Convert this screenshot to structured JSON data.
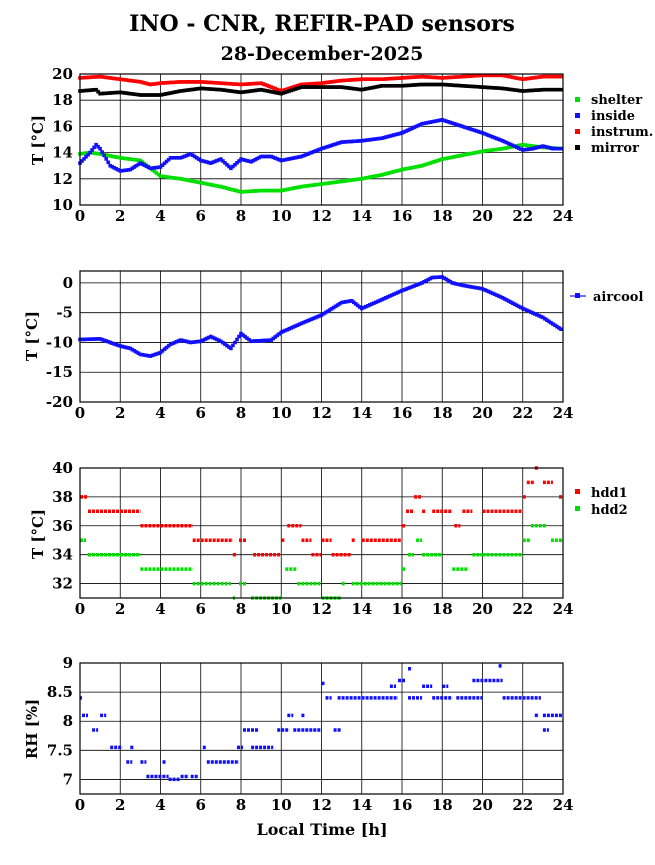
{
  "title": "INO - CNR, REFIR-PAD sensors",
  "date": "28-December-2025",
  "x_axis_label": "Local Time [h]",
  "colors": {
    "shelter": "#00e000",
    "inside": "#1010ff",
    "instrum": "#ff0000",
    "mirror": "#000000",
    "aircool": "#1010ff",
    "hdd1": "#ff0000",
    "hdd2": "#00e000",
    "rh": "#1010ff"
  },
  "chart_data": [
    {
      "type": "line",
      "id": "temps",
      "ylabel": "T [°C]",
      "xlim": [
        0,
        24
      ],
      "ylim": [
        10,
        20
      ],
      "xticks": [
        0,
        2,
        4,
        6,
        8,
        10,
        12,
        14,
        16,
        18,
        20,
        22,
        24
      ],
      "yticks": [
        10,
        12,
        14,
        16,
        18,
        20
      ],
      "grid": true,
      "legend_position": "right",
      "series": [
        {
          "name": "shelter",
          "x": [
            0,
            0.5,
            1,
            2,
            3,
            3.5,
            4,
            5,
            6,
            7,
            8,
            9,
            10,
            11,
            12,
            13,
            14,
            15,
            16,
            17,
            18,
            19,
            20,
            21,
            22,
            23,
            24
          ],
          "y": [
            13.9,
            14.0,
            13.9,
            13.6,
            13.4,
            12.8,
            12.2,
            12.0,
            11.7,
            11.4,
            11.0,
            11.1,
            11.1,
            11.4,
            11.6,
            11.8,
            12.0,
            12.3,
            12.7,
            13.0,
            13.5,
            13.8,
            14.1,
            14.3,
            14.6,
            14.4,
            14.3
          ]
        },
        {
          "name": "inside",
          "x": [
            0,
            0.5,
            0.8,
            1,
            1.5,
            2,
            2.5,
            3,
            3.5,
            4,
            4.5,
            5,
            5.5,
            6,
            6.5,
            7,
            7.5,
            8,
            8.5,
            9,
            9.5,
            10,
            11,
            12,
            13,
            14,
            15,
            16,
            17,
            18,
            19,
            20,
            21,
            22,
            22.5,
            23,
            23.5,
            24
          ],
          "y": [
            13.2,
            14.0,
            14.6,
            14.3,
            13.0,
            12.6,
            12.7,
            13.2,
            12.8,
            12.9,
            13.6,
            13.6,
            13.9,
            13.4,
            13.2,
            13.5,
            12.8,
            13.5,
            13.3,
            13.7,
            13.7,
            13.4,
            13.7,
            14.3,
            14.8,
            14.9,
            15.1,
            15.5,
            16.2,
            16.5,
            16.0,
            15.5,
            14.9,
            14.2,
            14.3,
            14.5,
            14.3,
            14.3
          ]
        },
        {
          "name": "instrum.",
          "x": [
            0,
            1,
            2,
            3,
            3.5,
            4,
            5,
            6,
            7,
            8,
            9,
            10,
            11,
            12,
            13,
            14,
            15,
            16,
            17,
            18,
            19,
            20,
            21,
            22,
            23,
            24
          ],
          "y": [
            19.7,
            19.8,
            19.6,
            19.4,
            19.2,
            19.3,
            19.4,
            19.4,
            19.3,
            19.2,
            19.3,
            18.7,
            19.2,
            19.3,
            19.5,
            19.6,
            19.6,
            19.7,
            19.8,
            19.7,
            19.8,
            19.9,
            19.9,
            19.6,
            19.8,
            19.8
          ]
        },
        {
          "name": "mirror",
          "x": [
            0,
            0.8,
            1,
            2,
            3,
            4,
            5,
            6,
            7,
            8,
            9,
            10,
            11,
            12,
            13,
            14,
            15,
            16,
            17,
            18,
            19,
            20,
            21,
            22,
            23,
            24
          ],
          "y": [
            18.7,
            18.8,
            18.5,
            18.6,
            18.4,
            18.4,
            18.7,
            18.9,
            18.8,
            18.6,
            18.8,
            18.5,
            19.0,
            19.0,
            19.0,
            18.8,
            19.1,
            19.1,
            19.2,
            19.2,
            19.1,
            19.0,
            18.9,
            18.7,
            18.8,
            18.8
          ]
        }
      ]
    },
    {
      "type": "line",
      "id": "aircool",
      "ylabel": "T [°C]",
      "xlim": [
        0,
        24
      ],
      "ylim": [
        -20,
        2
      ],
      "xticks": [
        0,
        2,
        4,
        6,
        8,
        10,
        12,
        14,
        16,
        18,
        20,
        22,
        24
      ],
      "yticks": [
        -20,
        -15,
        -10,
        -5,
        0
      ],
      "ytick_labels": [
        "-20",
        "-15",
        "-10",
        "-5",
        "0"
      ],
      "grid": true,
      "legend_position": "right",
      "series": [
        {
          "name": "aircool",
          "x": [
            0,
            1,
            2,
            2.5,
            3,
            3.5,
            4,
            4.5,
            5,
            5.5,
            6,
            6.5,
            7,
            7.5,
            8,
            8.5,
            9,
            9.5,
            10,
            11,
            12,
            13,
            13.5,
            14,
            15,
            16,
            17,
            17.5,
            18,
            18.5,
            19,
            20,
            21,
            22,
            23,
            24
          ],
          "y": [
            -9.5,
            -9.4,
            -10.6,
            -11.0,
            -12.0,
            -12.3,
            -11.7,
            -10.3,
            -9.6,
            -10.0,
            -9.8,
            -9.0,
            -9.8,
            -11.0,
            -8.5,
            -9.8,
            -9.7,
            -9.6,
            -8.3,
            -6.8,
            -5.4,
            -3.3,
            -3.0,
            -4.3,
            -2.8,
            -1.3,
            0.0,
            0.9,
            1.0,
            0.0,
            -0.4,
            -1.0,
            -2.5,
            -4.3,
            -5.8,
            -8.0
          ]
        }
      ]
    },
    {
      "type": "scatter",
      "id": "hdd",
      "ylabel": "T [°C]",
      "xlim": [
        0,
        24
      ],
      "ylim": [
        31,
        40
      ],
      "xticks": [
        0,
        2,
        4,
        6,
        8,
        10,
        12,
        14,
        16,
        18,
        20,
        22,
        24
      ],
      "yticks": [
        32,
        34,
        36,
        38,
        40
      ],
      "grid": true,
      "legend_position": "right",
      "series": [
        {
          "name": "hdd1",
          "segments": [
            [
              0,
              0.4,
              38
            ],
            [
              0.4,
              3.0,
              37
            ],
            [
              3.0,
              5.6,
              36
            ],
            [
              5.6,
              7.6,
              35
            ],
            [
              7.6,
              7.8,
              34
            ],
            [
              7.9,
              8.3,
              35
            ],
            [
              8.6,
              10.0,
              34
            ],
            [
              10.0,
              10.2,
              35
            ],
            [
              10.3,
              11.0,
              36
            ],
            [
              11.0,
              11.5,
              35
            ],
            [
              11.5,
              12.0,
              34
            ],
            [
              12.0,
              12.5,
              35
            ],
            [
              12.5,
              13.5,
              34
            ],
            [
              13.5,
              13.7,
              35
            ],
            [
              14.0,
              16.0,
              35
            ],
            [
              16.0,
              16.2,
              36
            ],
            [
              16.2,
              16.6,
              37
            ],
            [
              16.6,
              17.0,
              38
            ],
            [
              17.0,
              17.2,
              37
            ],
            [
              17.5,
              18.5,
              37
            ],
            [
              18.6,
              18.9,
              36
            ],
            [
              19.0,
              19.5,
              37
            ],
            [
              20.0,
              22.0,
              37
            ],
            [
              22.0,
              22.2,
              38
            ],
            [
              22.2,
              22.6,
              39
            ],
            [
              22.6,
              22.8,
              40
            ],
            [
              23.0,
              23.5,
              39
            ],
            [
              23.8,
              24.0,
              38
            ]
          ]
        },
        {
          "name": "hdd2",
          "segments": [
            [
              0,
              0.3,
              35
            ],
            [
              0.4,
              3.0,
              34
            ],
            [
              3.0,
              5.6,
              33
            ],
            [
              5.6,
              7.5,
              32
            ],
            [
              7.6,
              7.7,
              31
            ],
            [
              7.9,
              8.3,
              32
            ],
            [
              8.5,
              10.0,
              31
            ],
            [
              10.2,
              10.8,
              33
            ],
            [
              10.8,
              12.0,
              32
            ],
            [
              12.0,
              13.0,
              31
            ],
            [
              13.0,
              13.2,
              32
            ],
            [
              13.5,
              16.0,
              32
            ],
            [
              16.0,
              16.2,
              33
            ],
            [
              16.3,
              16.6,
              34
            ],
            [
              16.7,
              17.0,
              35
            ],
            [
              17.0,
              18.0,
              34
            ],
            [
              18.5,
              19.3,
              33
            ],
            [
              19.5,
              20.0,
              34
            ],
            [
              20.0,
              22.0,
              34
            ],
            [
              22.0,
              22.4,
              35
            ],
            [
              22.4,
              23.2,
              36
            ],
            [
              23.4,
              24.0,
              35
            ]
          ]
        }
      ]
    },
    {
      "type": "scatter",
      "id": "rh",
      "ylabel": "RH [%]",
      "xlim": [
        0,
        24
      ],
      "ylim": [
        6.75,
        9
      ],
      "xticks": [
        0,
        2,
        4,
        6,
        8,
        10,
        12,
        14,
        16,
        18,
        20,
        22,
        24
      ],
      "yticks": [
        7,
        7.5,
        8,
        8.5,
        9
      ],
      "ytick_labels": [
        "7",
        "7.5",
        "8",
        "8.5",
        "9"
      ],
      "grid": true,
      "legend_position": "none",
      "series": [
        {
          "name": "RH",
          "segments": [
            [
              0,
              0.1,
              8.4
            ],
            [
              0.1,
              0.4,
              8.1
            ],
            [
              0.6,
              0.9,
              7.85
            ],
            [
              1.0,
              1.3,
              8.1
            ],
            [
              1.5,
              2.1,
              7.55
            ],
            [
              2.3,
              2.6,
              7.3
            ],
            [
              2.5,
              2.7,
              7.55
            ],
            [
              3.0,
              3.3,
              7.3
            ],
            [
              3.3,
              4.4,
              7.05
            ],
            [
              4.1,
              4.3,
              7.3
            ],
            [
              4.4,
              5.0,
              7.0
            ],
            [
              5.0,
              5.4,
              7.05
            ],
            [
              5.5,
              5.9,
              7.05
            ],
            [
              6.1,
              6.3,
              7.55
            ],
            [
              6.3,
              7.9,
              7.3
            ],
            [
              7.8,
              8.1,
              7.55
            ],
            [
              8.1,
              8.9,
              7.85
            ],
            [
              8.5,
              9.6,
              7.55
            ],
            [
              9.8,
              10.4,
              7.85
            ],
            [
              10.3,
              10.6,
              8.1
            ],
            [
              10.6,
              12.0,
              7.85
            ],
            [
              11.0,
              11.2,
              8.1
            ],
            [
              12.0,
              12.2,
              8.65
            ],
            [
              12.2,
              12.5,
              8.4
            ],
            [
              12.6,
              13.0,
              7.85
            ],
            [
              12.8,
              15.8,
              8.4
            ],
            [
              15.4,
              15.7,
              8.6
            ],
            [
              15.8,
              16.2,
              8.7
            ],
            [
              16.3,
              16.5,
              8.9
            ],
            [
              16.3,
              17.0,
              8.4
            ],
            [
              17.0,
              17.5,
              8.6
            ],
            [
              17.5,
              18.5,
              8.4
            ],
            [
              18.0,
              18.3,
              8.6
            ],
            [
              18.7,
              20.0,
              8.4
            ],
            [
              19.5,
              21.0,
              8.7
            ],
            [
              20.8,
              21.0,
              8.95
            ],
            [
              21.0,
              22.9,
              8.4
            ],
            [
              22.6,
              22.8,
              8.1
            ],
            [
              23.0,
              23.3,
              7.85
            ],
            [
              23.0,
              24.0,
              8.1
            ]
          ]
        }
      ]
    }
  ],
  "legend": {
    "shelter": "shelter",
    "inside": "inside",
    "instrum": "instrum.",
    "mirror": "mirror",
    "aircool": "aircool",
    "hdd1": "hdd1",
    "hdd2": "hdd2"
  },
  "ylabels": {
    "p1": "T [°C]",
    "p2": "T [°C]",
    "p3": "T [°C]",
    "p4": "RH [%]"
  }
}
